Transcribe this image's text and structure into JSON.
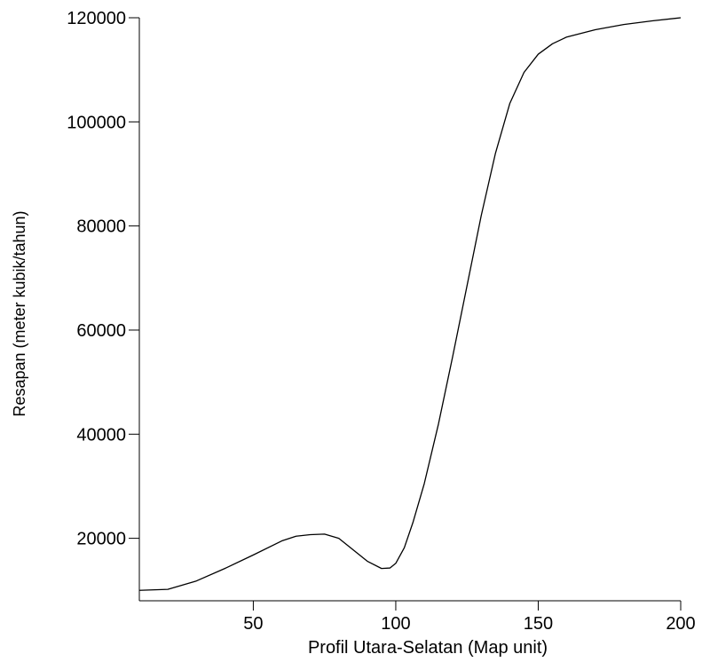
{
  "chart_data": {
    "type": "line",
    "title": "",
    "xlabel": "Profil Utara-Selatan (Map unit)",
    "ylabel": "Resapan (meter kubik/tahun)",
    "xlim": [
      10,
      200
    ],
    "ylim": [
      8000,
      120000
    ],
    "xticks": [
      50,
      100,
      150,
      200
    ],
    "yticks": [
      20000,
      40000,
      60000,
      80000,
      100000,
      120000
    ],
    "xtick_labels": [
      "50",
      "100",
      "150",
      "200"
    ],
    "ytick_labels": [
      "20000",
      "40000",
      "60000",
      "80000",
      "100000",
      "120000"
    ],
    "grid": false,
    "series": [
      {
        "name": "",
        "color": "#000000",
        "points": [
          [
            10,
            10000
          ],
          [
            20,
            10200
          ],
          [
            30,
            11800
          ],
          [
            40,
            14200
          ],
          [
            50,
            16800
          ],
          [
            60,
            19500
          ],
          [
            65,
            20400
          ],
          [
            70,
            20700
          ],
          [
            75,
            20800
          ],
          [
            80,
            20000
          ],
          [
            85,
            17800
          ],
          [
            90,
            15600
          ],
          [
            95,
            14200
          ],
          [
            98,
            14300
          ],
          [
            100,
            15200
          ],
          [
            103,
            18200
          ],
          [
            106,
            23000
          ],
          [
            110,
            30500
          ],
          [
            115,
            42000
          ],
          [
            120,
            55000
          ],
          [
            125,
            68500
          ],
          [
            130,
            82000
          ],
          [
            135,
            94000
          ],
          [
            140,
            103500
          ],
          [
            145,
            109500
          ],
          [
            150,
            113000
          ],
          [
            155,
            115000
          ],
          [
            160,
            116300
          ],
          [
            170,
            117700
          ],
          [
            180,
            118700
          ],
          [
            190,
            119400
          ],
          [
            200,
            120000
          ]
        ]
      }
    ]
  }
}
